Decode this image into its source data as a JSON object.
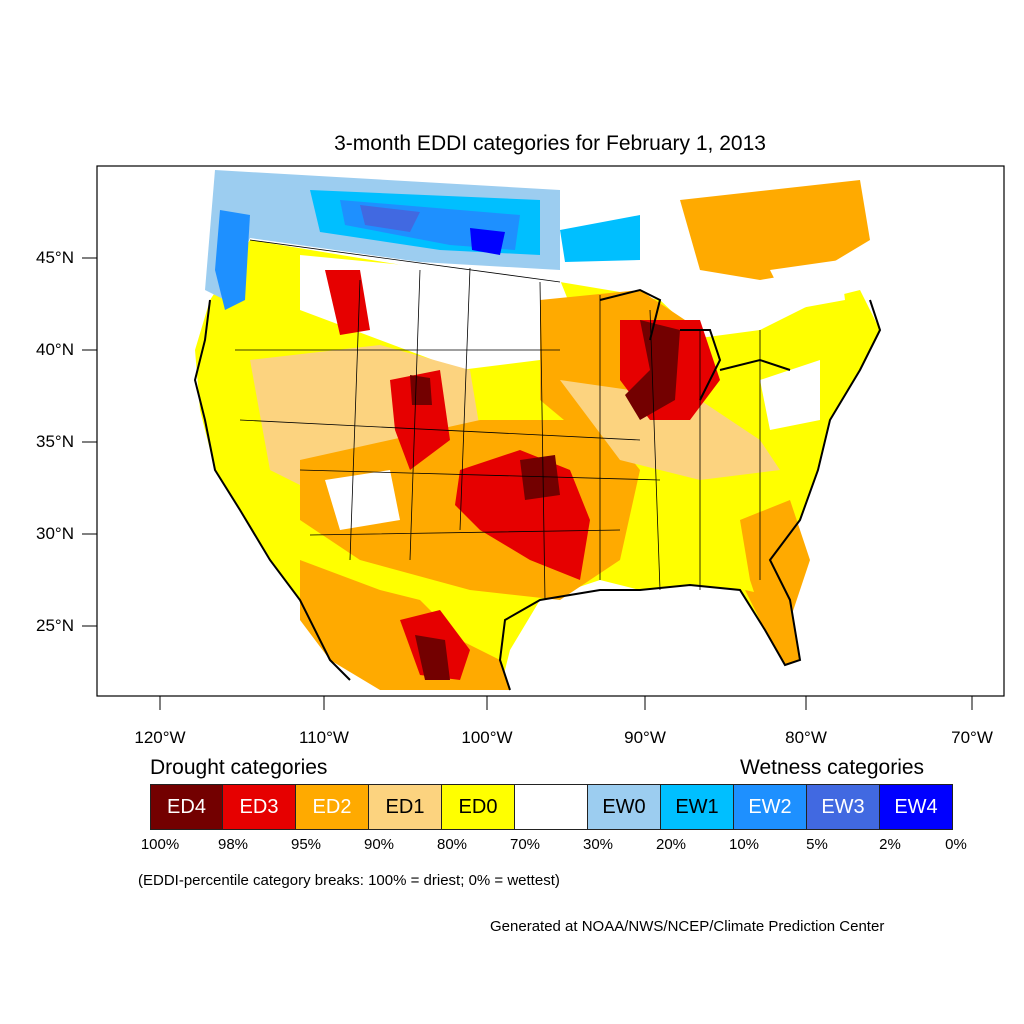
{
  "title": "3-month EDDI categories for February 1, 2013",
  "map": {
    "lat_labels": [
      "45°N",
      "40°N",
      "35°N",
      "30°N",
      "25°N"
    ],
    "lon_labels": [
      "120°W",
      "110°W",
      "100°W",
      "90°W",
      "80°W",
      "70°W"
    ]
  },
  "legend": {
    "drought_heading": "Drought categories",
    "wetness_heading": "Wetness categories",
    "categories": [
      {
        "label": "ED4",
        "color": "#730000",
        "text_color": "#ffffff"
      },
      {
        "label": "ED3",
        "color": "#e60000",
        "text_color": "#ffffff"
      },
      {
        "label": "ED2",
        "color": "#ffaa00",
        "text_color": "#ffffff"
      },
      {
        "label": "ED1",
        "color": "#fcd37f",
        "text_color": "#000000"
      },
      {
        "label": "ED0",
        "color": "#ffff00",
        "text_color": "#000000"
      },
      {
        "label": "",
        "color": "#ffffff",
        "text_color": "#000000"
      },
      {
        "label": "EW0",
        "color": "#9ccdf0",
        "text_color": "#000000"
      },
      {
        "label": "EW1",
        "color": "#00bfff",
        "text_color": "#000000"
      },
      {
        "label": "EW2",
        "color": "#1e90ff",
        "text_color": "#ffffff"
      },
      {
        "label": "EW3",
        "color": "#4169e1",
        "text_color": "#ffffff"
      },
      {
        "label": "EW4",
        "color": "#0000ff",
        "text_color": "#ffffff"
      }
    ],
    "breaks": [
      "100%",
      "98%",
      "95%",
      "90%",
      "80%",
      "70%",
      "30%",
      "20%",
      "10%",
      "5%",
      "2%",
      "0%"
    ]
  },
  "note": "(EDDI-percentile category breaks: 100% = driest; 0% = wettest)",
  "credit": "Generated at NOAA/NWS/NCEP/Climate Prediction Center"
}
